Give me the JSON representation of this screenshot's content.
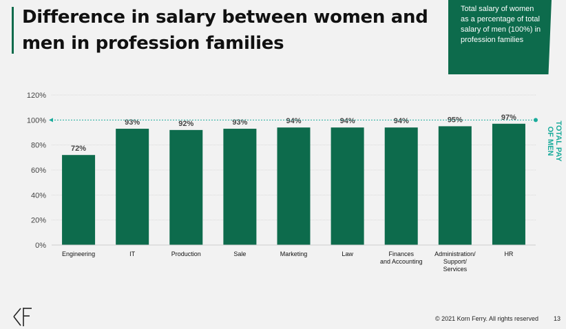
{
  "slide": {
    "title": "Difference in salary between women and men in profession families",
    "callout": "Total salary of women as a percentage of total salary of men (100%) in profession families",
    "footer_copyright": "© 2021 Korn Ferry. All rights reserved",
    "page_number": "13"
  },
  "colors": {
    "accent": "#0d6b4c",
    "bar": "#0d6b4c",
    "reference_line": "#1aab9b",
    "background": "#f2f2f2"
  },
  "chart_data": {
    "type": "bar",
    "categories": [
      "Engineering",
      "IT",
      "Production",
      "Sale",
      "Marketing",
      "Law",
      "Finances and Accounting",
      "Administration/ Support/ Services",
      "HR"
    ],
    "category_lines": [
      [
        "Engineering"
      ],
      [
        "IT"
      ],
      [
        "Production"
      ],
      [
        "Sale"
      ],
      [
        "Marketing"
      ],
      [
        "Law"
      ],
      [
        "Finances",
        "and Accounting"
      ],
      [
        "Administration/",
        "Support/",
        "Services"
      ],
      [
        "HR"
      ]
    ],
    "values": [
      72,
      93,
      92,
      93,
      94,
      94,
      94,
      95,
      97
    ],
    "data_labels": [
      "72%",
      "93%",
      "92%",
      "93%",
      "94%",
      "94%",
      "94%",
      "95%",
      "97%"
    ],
    "yticks": [
      0,
      20,
      40,
      60,
      80,
      100,
      120
    ],
    "ytick_labels": [
      "0%",
      "20%",
      "40%",
      "60%",
      "80%",
      "100%",
      "120%"
    ],
    "ylim": [
      0,
      120
    ],
    "grid": true,
    "reference_line": {
      "value": 100,
      "label_lines": [
        "TOTAL PAY",
        "OF MEN"
      ]
    }
  }
}
